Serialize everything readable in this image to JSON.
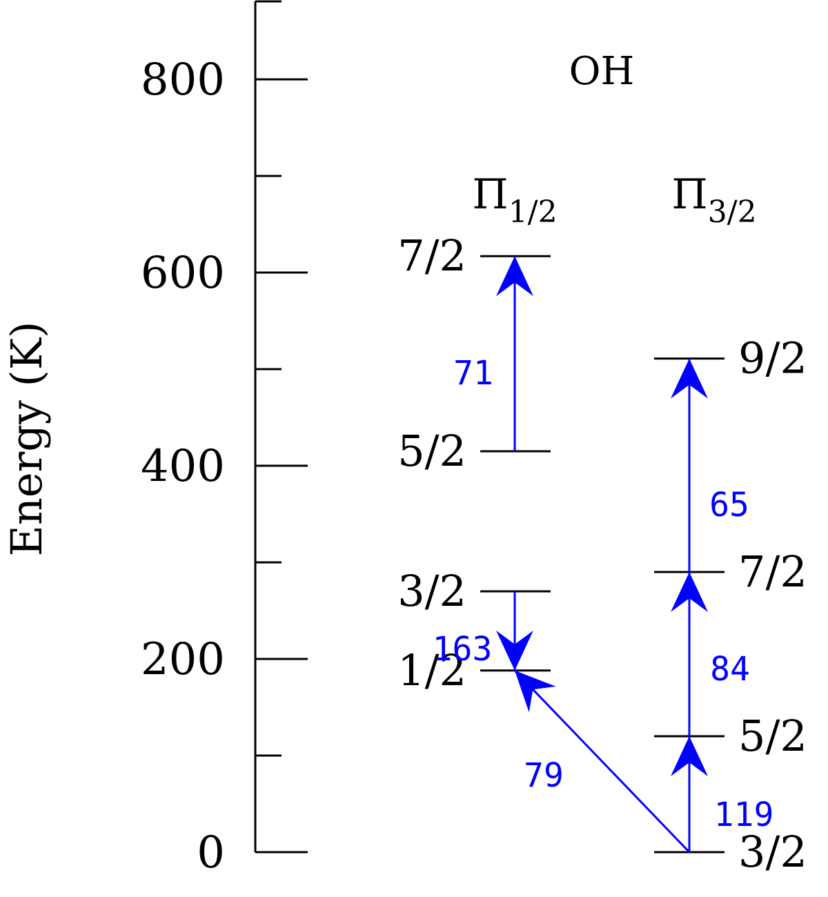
{
  "molecule_label": "OH",
  "y_axis": {
    "label": "Energy (K)",
    "range": [
      0,
      900
    ],
    "major_ticks": [
      0,
      200,
      400,
      600,
      800
    ],
    "minor_ticks": [
      100,
      300,
      500,
      700
    ],
    "tick_labels": [
      "0",
      "200",
      "400",
      "600",
      "800"
    ]
  },
  "ladders": [
    {
      "key": "pi12",
      "symbol": "Π",
      "subscript": "1/2",
      "levels": [
        {
          "J": "1/2",
          "energy": 188
        },
        {
          "J": "3/2",
          "energy": 270
        },
        {
          "J": "5/2",
          "energy": 415
        },
        {
          "J": "7/2",
          "energy": 617
        }
      ]
    },
    {
      "key": "pi32",
      "symbol": "Π",
      "subscript": "3/2",
      "levels": [
        {
          "J": "3/2",
          "energy": 0
        },
        {
          "J": "5/2",
          "energy": 120
        },
        {
          "J": "7/2",
          "energy": 290
        },
        {
          "J": "9/2",
          "energy": 511
        }
      ]
    }
  ],
  "transitions": [
    {
      "label": "71",
      "from": {
        "ladder": "pi12",
        "J": "5/2"
      },
      "to": {
        "ladder": "pi12",
        "J": "7/2"
      }
    },
    {
      "label": "163",
      "from": {
        "ladder": "pi12",
        "J": "3/2"
      },
      "to": {
        "ladder": "pi12",
        "J": "1/2"
      }
    },
    {
      "label": "79",
      "from": {
        "ladder": "pi32",
        "J": "3/2"
      },
      "to": {
        "ladder": "pi12",
        "J": "1/2"
      }
    },
    {
      "label": "119",
      "from": {
        "ladder": "pi32",
        "J": "3/2"
      },
      "to": {
        "ladder": "pi32",
        "J": "5/2"
      }
    },
    {
      "label": "84",
      "from": {
        "ladder": "pi32",
        "J": "5/2"
      },
      "to": {
        "ladder": "pi32",
        "J": "7/2"
      }
    },
    {
      "label": "65",
      "from": {
        "ladder": "pi32",
        "J": "7/2"
      },
      "to": {
        "ladder": "pi32",
        "J": "9/2"
      }
    }
  ],
  "colors": {
    "transition": "#0000ff",
    "levels": "#000000"
  }
}
